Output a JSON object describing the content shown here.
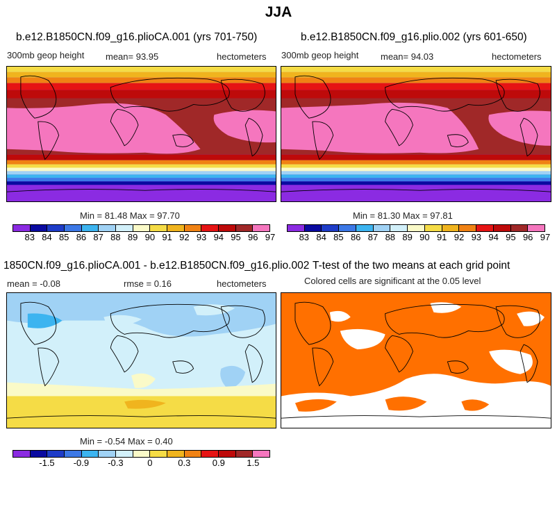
{
  "title": "JJA",
  "panels": [
    {
      "title": "b.e12.B1850CN.f09_g16.plioCA.001 (yrs 701-750)",
      "left_label": "300mb geop height",
      "mid_label": "mean=   93.95",
      "right_label": "hectometers",
      "minmax": "Min =  81.48 Max =  97.70"
    },
    {
      "title": "b.e12.B1850CN.f09_g16.plio.002 (yrs 601-650)",
      "left_label": "300mb geop height",
      "mid_label": "mean=   94.03",
      "right_label": "hectometers",
      "minmax": "Min =  81.30 Max =  97.81"
    },
    {
      "title": "1850CN.f09_g16.plioCA.001 - b.e12.B1850CN.f09_g16.plio.002",
      "left_label": "mean =   -0.08",
      "mid_label": "rmse =    0.16",
      "right_label": "hectometers",
      "minmax": "Min =  -0.54 Max =   0.40"
    },
    {
      "title": "T-test of the two means at each grid point",
      "left_label": "Colored cells are significant at the 0.05 level",
      "mid_label": "",
      "right_label": "",
      "minmax": ""
    }
  ],
  "colorbars": {
    "height": {
      "colors": [
        "#8b2be2",
        "#0a0aa0",
        "#1e3cc8",
        "#3c78e6",
        "#3cb4f0",
        "#a0d2f5",
        "#d2f0fa",
        "#fafac8",
        "#f5dc46",
        "#f0b41e",
        "#f08214",
        "#e61414",
        "#be0a0a",
        "#a02828",
        "#f576be"
      ],
      "labels": [
        "83",
        "84",
        "85",
        "86",
        "87",
        "88",
        "89",
        "90",
        "91",
        "92",
        "93",
        "94",
        "95",
        "96",
        "97"
      ]
    },
    "difference": {
      "colors": [
        "#8b2be2",
        "#0a0aa0",
        "#1e3cc8",
        "#3c78e6",
        "#3cb4f0",
        "#a0d2f5",
        "#d2f0fa",
        "#fafac8",
        "#f5dc46",
        "#f0b41e",
        "#f08214",
        "#e61414",
        "#be0a0a",
        "#a02828",
        "#f576be"
      ],
      "labels": [
        "-1.5",
        "-0.9",
        "-0.3",
        "0",
        "0.3",
        "0.9",
        "1.5"
      ]
    }
  },
  "chart_data": [
    {
      "type": "heatmap",
      "title": "b.e12.B1850CN.f09_g16.plioCA.001 (yrs 701-750)",
      "variable": "300mb geop height",
      "units": "hectometers",
      "mean": 93.95,
      "min": 81.48,
      "max": 97.7,
      "colorbar_levels": [
        83,
        84,
        85,
        86,
        87,
        88,
        89,
        90,
        91,
        92,
        93,
        94,
        95,
        96,
        97
      ]
    },
    {
      "type": "heatmap",
      "title": "b.e12.B1850CN.f09_g16.plio.002 (yrs 601-650)",
      "variable": "300mb geop height",
      "units": "hectometers",
      "mean": 94.03,
      "min": 81.3,
      "max": 97.81,
      "colorbar_levels": [
        83,
        84,
        85,
        86,
        87,
        88,
        89,
        90,
        91,
        92,
        93,
        94,
        95,
        96,
        97
      ]
    },
    {
      "type": "heatmap",
      "title": "1850CN.f09_g16.plioCA.001 - b.e12.B1850CN.f09_g16.plio.002",
      "units": "hectometers",
      "mean": -0.08,
      "rmse": 0.16,
      "min": -0.54,
      "max": 0.4,
      "colorbar_levels": [
        -1.5,
        -0.9,
        -0.3,
        0,
        0.3,
        0.9,
        1.5
      ]
    },
    {
      "type": "heatmap",
      "title": "T-test of the two means at each grid point",
      "subtitle": "Colored cells are significant at the 0.05 level",
      "significant_color": "#ff7000"
    }
  ]
}
